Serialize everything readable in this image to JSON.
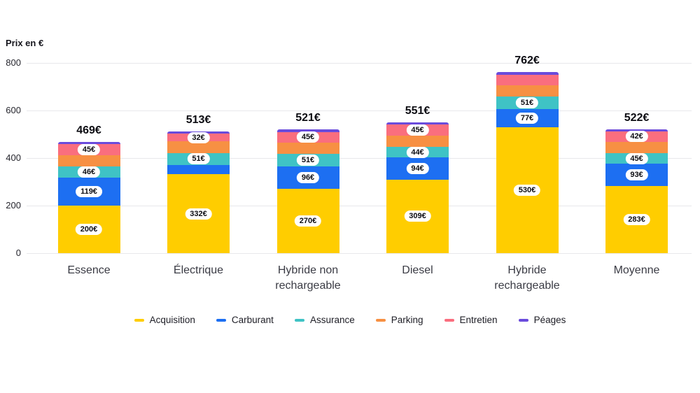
{
  "chart": {
    "currency_suffix": "€",
    "y_axis_title": "Prix en €"
  },
  "chart_data": {
    "type": "bar",
    "stacked": true,
    "title": "",
    "xlabel": "",
    "ylabel": "Prix en €",
    "ylim": [
      0,
      800
    ],
    "y_ticks": [
      0,
      200,
      400,
      600,
      800
    ],
    "grid": true,
    "legend_position": "bottom",
    "categories": [
      "Essence",
      "Électrique",
      "Hybride non rechargeable",
      "Diesel",
      "Hybride rechargeable",
      "Moyenne"
    ],
    "totals": [
      469,
      513,
      521,
      551,
      762,
      522
    ],
    "series": [
      {
        "name": "Acquisition",
        "color": "#FFCD00",
        "values": [
          200,
          332,
          270,
          309,
          530,
          283
        ],
        "show_labels": [
          true,
          true,
          true,
          true,
          true,
          true
        ]
      },
      {
        "name": "Carburant",
        "color": "#1D6FF2",
        "values": [
          119,
          39,
          96,
          94,
          77,
          93
        ],
        "show_labels": [
          true,
          false,
          true,
          true,
          true,
          true
        ]
      },
      {
        "name": "Assurance",
        "color": "#3FC3C5",
        "values": [
          46,
          51,
          51,
          44,
          51,
          45
        ],
        "show_labels": [
          true,
          true,
          true,
          true,
          true,
          true
        ]
      },
      {
        "name": "Parking",
        "color": "#F79043",
        "values": [
          48,
          48,
          48,
          48,
          48,
          48
        ],
        "show_labels": [
          false,
          false,
          false,
          false,
          false,
          false
        ]
      },
      {
        "name": "Entretien",
        "color": "#FA6E7E",
        "values": [
          45,
          32,
          45,
          45,
          45,
          42
        ],
        "show_labels": [
          true,
          true,
          true,
          true,
          false,
          true
        ]
      },
      {
        "name": "Péages",
        "color": "#6A4BDC",
        "values": [
          11,
          11,
          11,
          11,
          11,
          11
        ],
        "show_labels": [
          false,
          false,
          false,
          false,
          false,
          false
        ]
      }
    ]
  }
}
